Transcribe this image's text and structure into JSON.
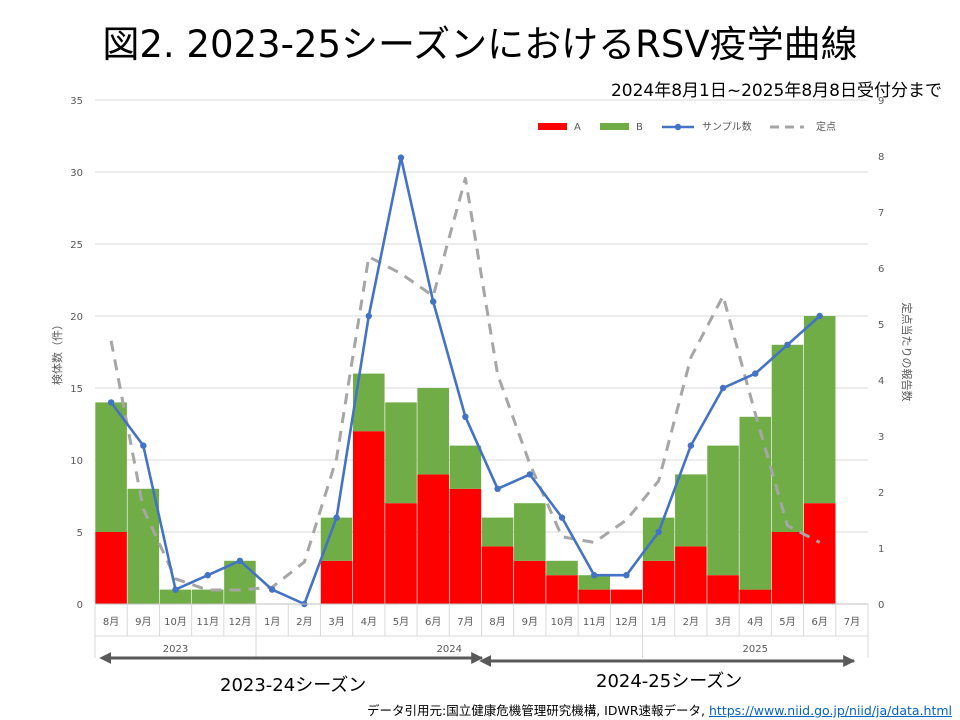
{
  "title": "図2. 2023-25シーズンにおけるRSV疫学曲線",
  "subtitle": "2024年8月1日~2025年8月8日受付分まで",
  "seasons": [
    "2023-24シーズン",
    "2024-25シーズン"
  ],
  "source": {
    "prefix": "データ引用元:国立健康危機管理研究機構, IDWR速報データ,",
    "url": "https://www.niid.go.jp/niid/ja/data.html"
  },
  "colors": {
    "A": "#ff0000",
    "B": "#70ad47",
    "sample": "#4472c4",
    "sentinel": "#a6a6a6"
  },
  "chart_data": {
    "type": "bar",
    "categories": [
      "8月",
      "9月",
      "10月",
      "11月",
      "12月",
      "1月",
      "2月",
      "3月",
      "4月",
      "5月",
      "6月",
      "7月",
      "8月",
      "9月",
      "10月",
      "11月",
      "12月",
      "1月",
      "2月",
      "3月",
      "4月",
      "5月",
      "6月",
      "7月"
    ],
    "year_groups": [
      {
        "label": "2023",
        "start": 0,
        "end": 4
      },
      {
        "label": "2024",
        "start": 5,
        "end": 16
      },
      {
        "label": "2025",
        "start": 17,
        "end": 23
      }
    ],
    "ylabel": "検体数（件）",
    "y2label": "定点当たりの報告数",
    "ylim": [
      0,
      35
    ],
    "y2lim": [
      0,
      9
    ],
    "yticks": [
      0,
      5,
      10,
      15,
      20,
      25,
      30,
      35
    ],
    "y2ticks": [
      0,
      1,
      2,
      3,
      4,
      5,
      6,
      7,
      8,
      9
    ],
    "legend_position": "top-right",
    "grid": true,
    "series": [
      {
        "name": "A",
        "type": "bar",
        "axis": "left",
        "values": [
          5,
          0,
          0,
          0,
          0,
          0,
          0,
          3,
          12,
          7,
          9,
          8,
          4,
          3,
          2,
          1,
          1,
          3,
          4,
          2,
          1,
          5,
          7,
          null
        ]
      },
      {
        "name": "B",
        "type": "bar",
        "axis": "left",
        "values": [
          9,
          8,
          1,
          1,
          3,
          0,
          0,
          3,
          4,
          7,
          6,
          3,
          2,
          4,
          1,
          1,
          0,
          3,
          5,
          9,
          12,
          13,
          13,
          null
        ]
      },
      {
        "name": "サンプル数",
        "type": "line",
        "axis": "left",
        "values": [
          14,
          11,
          1,
          2,
          3,
          1,
          0,
          6,
          20,
          31,
          21,
          13,
          8,
          9,
          6,
          2,
          2,
          5,
          11,
          15,
          16,
          18,
          20,
          null
        ]
      },
      {
        "name": "定点",
        "type": "dashed-line",
        "axis": "right",
        "values": [
          4.7,
          1.7,
          0.45,
          0.25,
          0.25,
          0.3,
          0.75,
          2.6,
          6.2,
          5.9,
          5.5,
          7.6,
          4.1,
          2.5,
          1.2,
          1.1,
          1.5,
          2.2,
          4.4,
          5.5,
          3.4,
          1.4,
          1.1,
          null
        ]
      }
    ]
  }
}
